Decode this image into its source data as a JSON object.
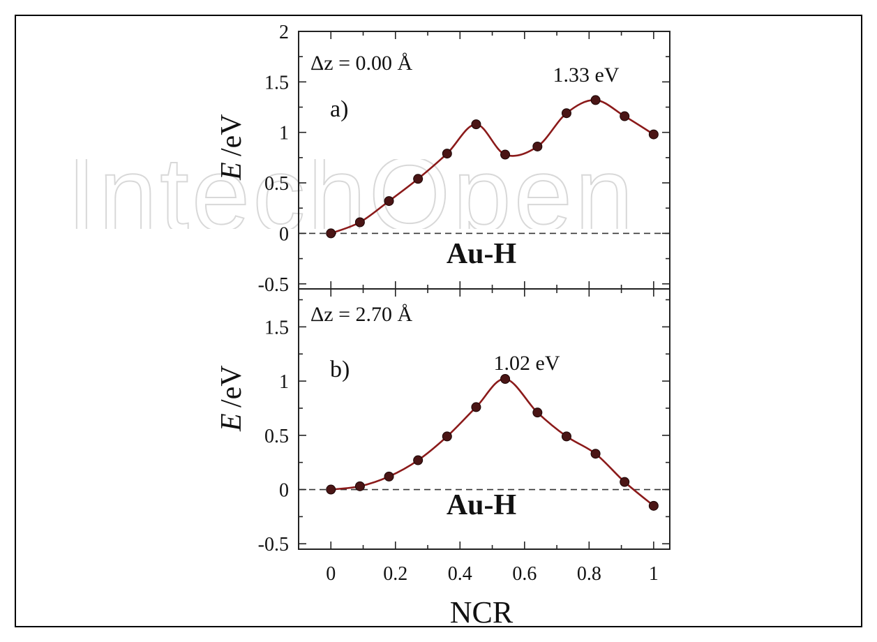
{
  "watermark": "IntechOpen",
  "colors": {
    "curve": "#8b1a1a",
    "marker": "#4a1515",
    "axis": "#222222"
  },
  "chart_data": [
    {
      "type": "line",
      "panel": "a)",
      "annotation_dz": "Δz = 0.00 Å",
      "peak_label": "1.33 eV",
      "inner_label": "Au-H",
      "ylabel_symbol": "E",
      "ylabel_unit": "/eV",
      "xlabel": "",
      "xlim": [
        -0.1,
        1.05
      ],
      "ylim": [
        -0.55,
        2.0
      ],
      "yticks": [
        "2",
        "1.5",
        "1",
        "0.5",
        "0",
        "-0.5"
      ],
      "ytick_values": [
        2,
        1.5,
        1,
        0.5,
        0,
        -0.5
      ],
      "x": [
        0,
        0.09,
        0.18,
        0.27,
        0.36,
        0.45,
        0.54,
        0.64,
        0.73,
        0.82,
        0.91,
        1.0
      ],
      "y": [
        0.0,
        0.11,
        0.32,
        0.54,
        0.79,
        1.08,
        0.78,
        0.86,
        1.19,
        1.32,
        1.16,
        0.98
      ],
      "reference_line_y": 0,
      "grid": false
    },
    {
      "type": "line",
      "panel": "b)",
      "annotation_dz": "Δz = 2.70 Å",
      "peak_label": "1.02 eV",
      "inner_label": "Au-H",
      "ylabel_symbol": "E",
      "ylabel_unit": "/eV",
      "xlabel": "NCR",
      "xlim": [
        -0.1,
        1.05
      ],
      "ylim": [
        -0.55,
        1.85
      ],
      "yticks": [
        "1.5",
        "1",
        "0.5",
        "0",
        "-0.5"
      ],
      "ytick_values": [
        1.5,
        1,
        0.5,
        0,
        -0.5
      ],
      "xticks": [
        "0",
        "0.2",
        "0.4",
        "0.6",
        "0.8",
        "1"
      ],
      "xtick_values": [
        0,
        0.2,
        0.4,
        0.6,
        0.8,
        1
      ],
      "x": [
        0,
        0.09,
        0.18,
        0.27,
        0.36,
        0.45,
        0.54,
        0.64,
        0.73,
        0.82,
        0.91,
        1.0
      ],
      "y": [
        0.0,
        0.03,
        0.12,
        0.27,
        0.49,
        0.76,
        1.02,
        0.71,
        0.49,
        0.33,
        0.07,
        -0.15
      ],
      "reference_line_y": 0,
      "grid": false
    }
  ]
}
